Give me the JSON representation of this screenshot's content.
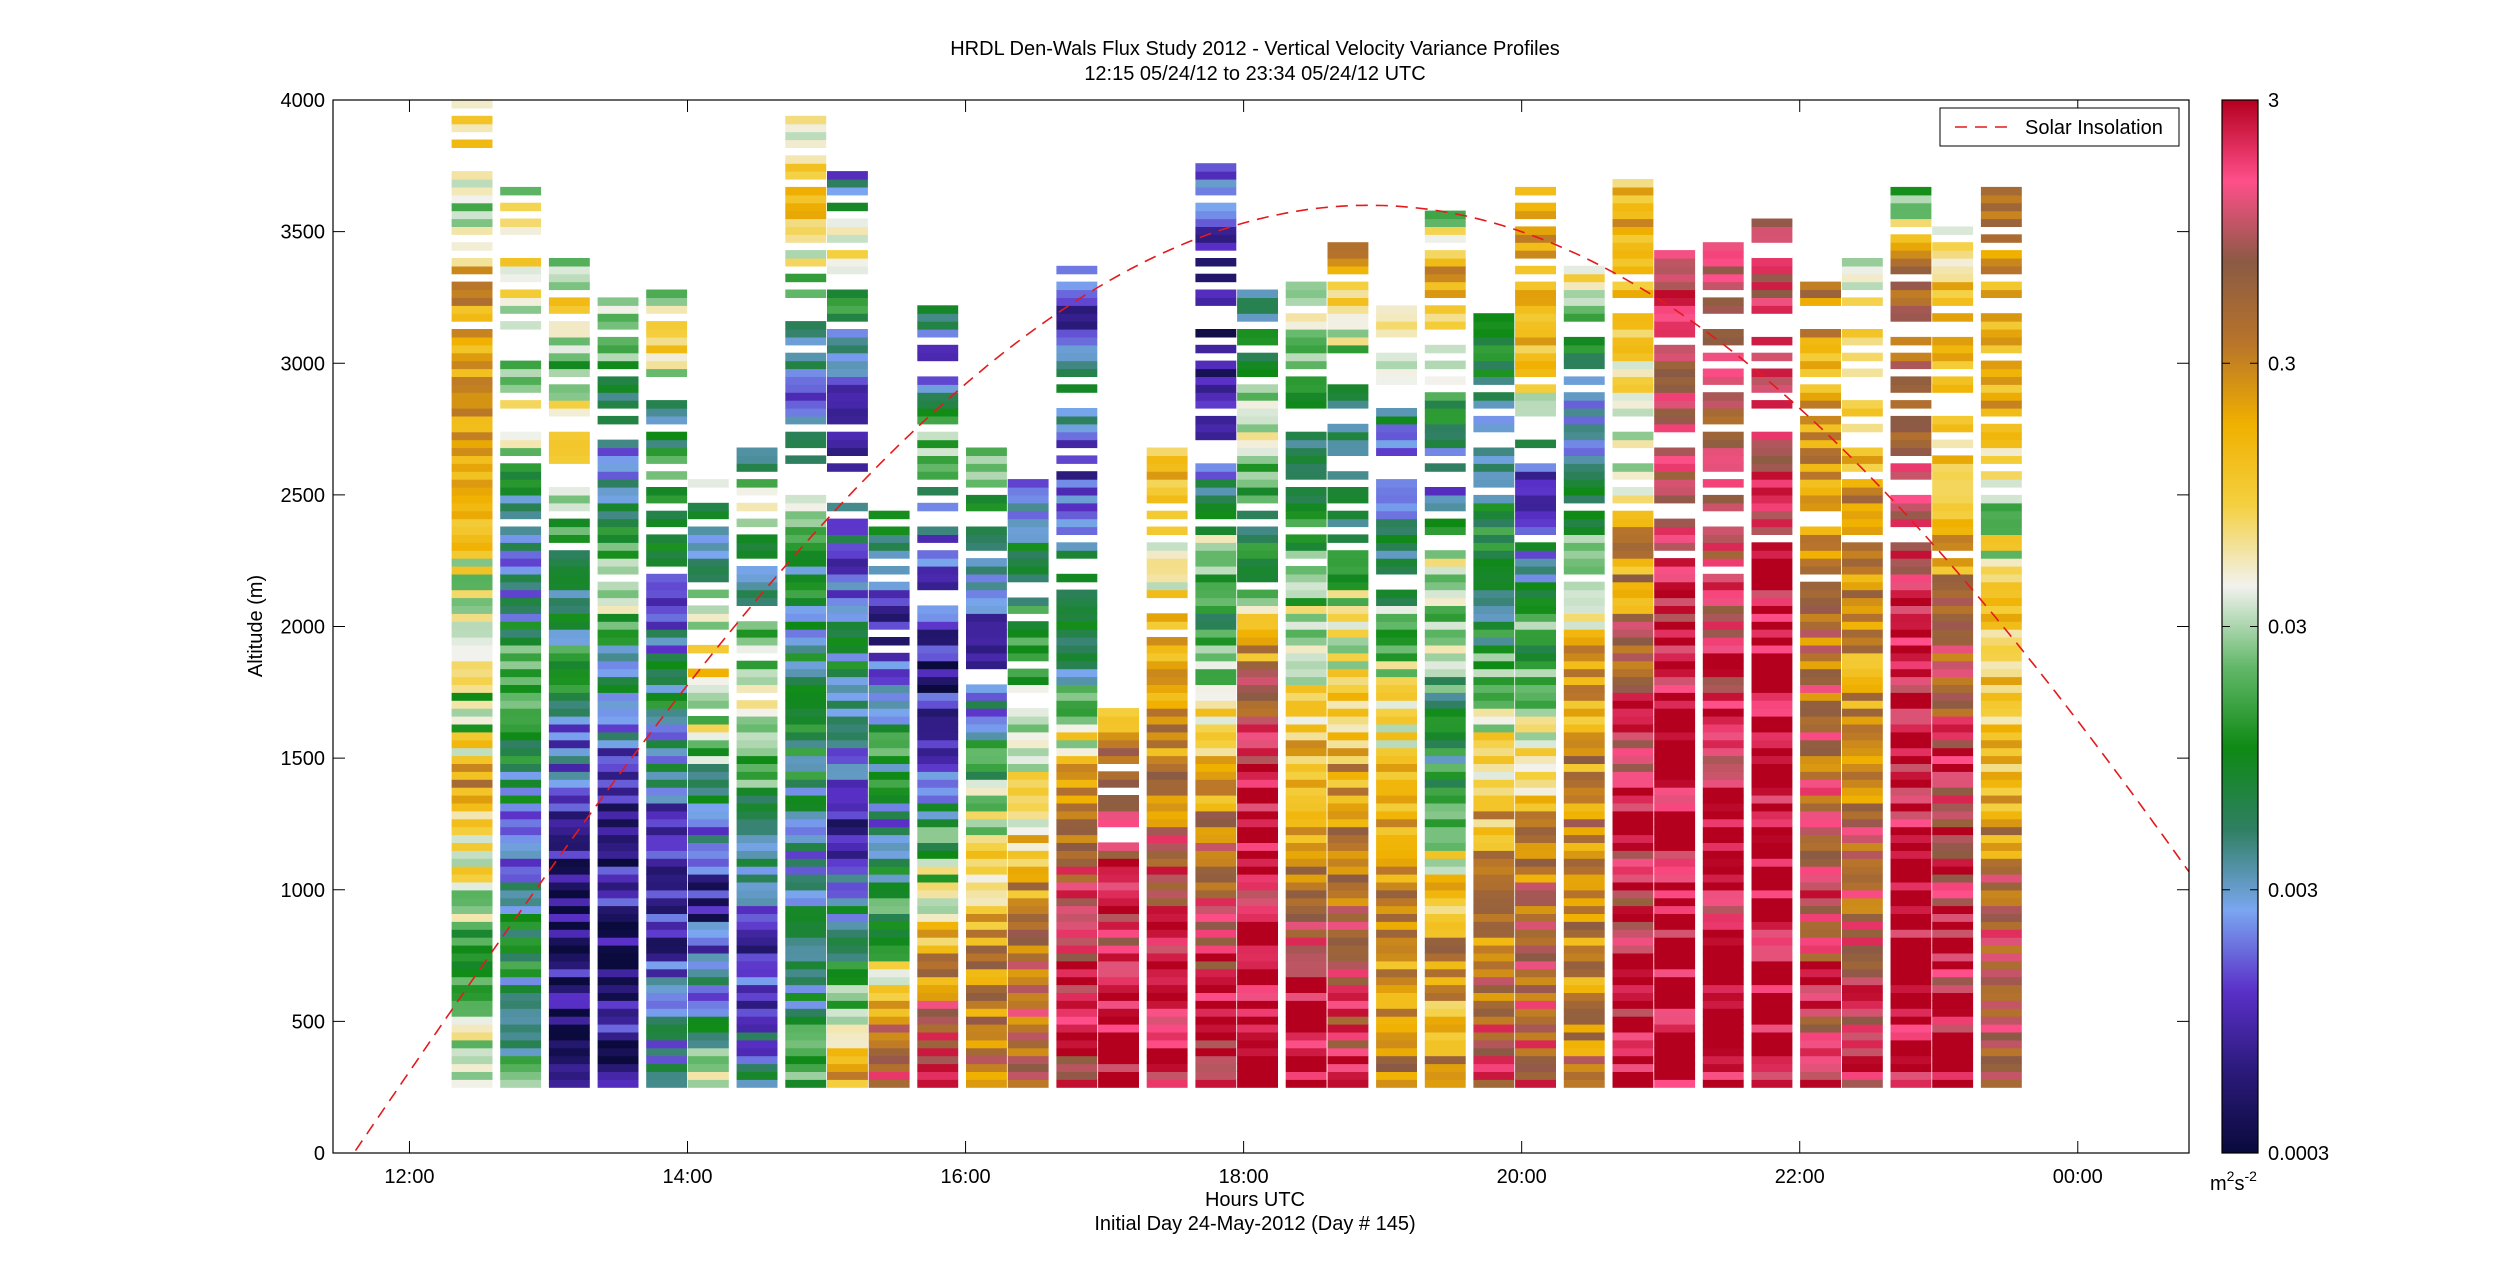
{
  "chart_data": {
    "type": "heatmap",
    "title_line1": "HRDL Den-Wals Flux Study 2012 - Vertical Velocity Variance Profiles",
    "title_line2": "12:15 05/24/12 to 23:34 05/24/12  UTC",
    "xlabel": "Hours UTC",
    "xlabel_sub": "Initial Day 24-May-2012 (Day # 145)",
    "ylabel": "Altitude (m)",
    "xlim": [
      11.45,
      24.8
    ],
    "ylim": [
      0,
      4000
    ],
    "x_ticks": [
      {
        "value": 12,
        "label": "12:00"
      },
      {
        "value": 14,
        "label": "14:00"
      },
      {
        "value": 16,
        "label": "16:00"
      },
      {
        "value": 18,
        "label": "18:00"
      },
      {
        "value": 20,
        "label": "20:00"
      },
      {
        "value": 22,
        "label": "22:00"
      },
      {
        "value": 24,
        "label": "00:00"
      }
    ],
    "y_ticks": [
      0,
      500,
      1000,
      1500,
      2000,
      2500,
      3000,
      3500,
      4000
    ],
    "y_tick_labels": [
      "0",
      "500",
      "1000",
      "1500",
      "2000",
      "2500",
      "3000",
      "3500",
      "4000"
    ],
    "colorbar": {
      "scale": "log",
      "range": [
        0.0003,
        3
      ],
      "tick_values": [
        0.0003,
        0.003,
        0.03,
        0.3,
        3
      ],
      "tick_labels": [
        "0.0003",
        "0.003",
        "0.03",
        "0.3",
        "3"
      ],
      "unit_base": "m",
      "unit_sup1": "2",
      "unit_mid": "s",
      "unit_sup2": "-2",
      "colors": [
        "#0a0a3c",
        "#2a1a7a",
        "#5a30c8",
        "#7aa6f0",
        "#2f7f62",
        "#0e8a14",
        "#63b86a",
        "#f2f2ee",
        "#f4d040",
        "#f0b000",
        "#b8742a",
        "#8a5a44",
        "#ff4f8a",
        "#b4001e"
      ]
    },
    "legend": {
      "position": "top-right",
      "entry": "Solar Insolation",
      "color": "#e41a1c",
      "style": "dashed"
    },
    "solar_curve": {
      "peak_hour": 18.9,
      "peak_altitude": 3600,
      "half_width_hours": 7.3
    },
    "profiles": [
      {
        "time": 12.45,
        "top": 4000,
        "lev": [
          -1.2,
          -1.6,
          -2.0,
          -1.3,
          -1.0,
          -0.6,
          -1.8,
          -1.0,
          -1.4,
          -0.9,
          -0.7,
          -0.5,
          -0.6,
          -0.5,
          -1.6,
          -0.8,
          -1.1
        ]
      },
      {
        "time": 12.8,
        "top": 3680,
        "lev": [
          -1.8,
          -2.5,
          -2.1,
          -2.4,
          -2.8,
          -2.2,
          -2.0,
          -1.8,
          -2.6,
          -2.4,
          -2.0,
          -1.1,
          -1.8,
          -1.2,
          -0.9,
          -1.5
        ]
      },
      {
        "time": 13.15,
        "top": 3440,
        "lev": [
          -3.3,
          -3.4,
          -3.2,
          -3.4,
          -3.1,
          -2.9,
          -2.6,
          -2.0,
          -2.4,
          -1.8,
          -1.4,
          -0.8,
          -1.6,
          -0.9,
          -2.0
        ]
      },
      {
        "time": 13.5,
        "top": 3300,
        "lev": [
          -3.3,
          -3.2,
          -3.4,
          -3.0,
          -3.3,
          -2.8,
          -2.6,
          -2.2,
          -1.4,
          -1.8,
          -2.6,
          -2.0,
          -1.6,
          -1.2
        ]
      },
      {
        "time": 13.85,
        "top": 3300,
        "lev": [
          -2.4,
          -2.6,
          -3.0,
          -3.2,
          -2.8,
          -2.4,
          -2.2,
          -2.8,
          -2.0,
          -1.6,
          -2.2,
          -1.0,
          -1.4
        ]
      },
      {
        "time": 14.15,
        "top": 2560,
        "lev": [
          -1.6,
          -2.2,
          -2.8,
          -3.1,
          -2.6,
          -2.0,
          -1.4,
          -0.8,
          -1.6,
          -2.4,
          -1.4
        ]
      },
      {
        "time": 14.5,
        "top": 2680,
        "lev": [
          -2.4,
          -2.8,
          -3.0,
          -2.6,
          -2.0,
          -1.8,
          -1.3,
          -1.6,
          -2.4,
          -1.0,
          -2.4
        ]
      },
      {
        "time": 14.85,
        "top": 3960,
        "lev": [
          -1.8,
          -2.2,
          -2.4,
          -2.6,
          -2.2,
          -2.0,
          -2.4,
          -2.1,
          -1.6,
          -2.8,
          -2.0,
          -1.2,
          -0.6,
          -1.5
        ]
      },
      {
        "time": 15.15,
        "top": 3750,
        "lev": [
          -0.8,
          -1.6,
          -2.4,
          -3.0,
          -2.6,
          -2.2,
          -2.8,
          -2.4,
          -3.1,
          -2.2,
          -1.0,
          -2.8
        ]
      },
      {
        "time": 15.45,
        "top": 2470,
        "lev": [
          0.1,
          -0.4,
          -1.6,
          -2.2,
          -2.6,
          -2.0,
          -2.4,
          -3.0,
          -2.2,
          -1.8
        ]
      },
      {
        "time": 15.8,
        "top": 3260,
        "lev": [
          0.2,
          -0.2,
          -0.8,
          -1.6,
          -2.4,
          -3.0,
          -3.2,
          -2.8,
          -2.4,
          -1.4,
          -2.8,
          -1.8
        ]
      },
      {
        "time": 16.15,
        "top": 2700,
        "lev": [
          -0.5,
          -0.4,
          -0.6,
          -1.1,
          -1.4,
          -2.0,
          -2.6,
          -3.0,
          -2.2,
          -1.8,
          -1.4
        ]
      },
      {
        "time": 16.45,
        "top": 2600,
        "lev": [
          -0.4,
          -0.3,
          -0.2,
          -0.6,
          -1.0,
          -1.2,
          -1.4,
          -1.8,
          -2.0,
          -2.2,
          -3.0
        ]
      },
      {
        "time": 16.8,
        "top": 3370,
        "lev": [
          0.2,
          0.4,
          0.1,
          0.0,
          -0.6,
          -1.2,
          -2.2,
          -1.8,
          -2.4,
          -3.0,
          -2.0,
          -3.0,
          -2.4
        ]
      },
      {
        "time": 17.1,
        "top": 1700,
        "lev": [
          0.5,
          0.4,
          0.3,
          0.2,
          0.1,
          -1.0
        ]
      },
      {
        "time": 17.45,
        "top": 2820,
        "lev": [
          0.3,
          0.4,
          0.2,
          0.0,
          -0.6,
          -0.4,
          -0.8,
          -1.2,
          -0.7,
          -1.0
        ]
      },
      {
        "time": 17.8,
        "top": 3790,
        "lev": [
          0.4,
          0.3,
          0.1,
          -0.2,
          -0.8,
          -1.4,
          -2.0,
          -1.6,
          -2.6,
          -3.0,
          -3.2,
          -2.8,
          -2.4
        ]
      },
      {
        "time": 18.1,
        "top": 3320,
        "lev": [
          0.45,
          0.5,
          0.45,
          0.4,
          0.2,
          -0.2,
          -1.6,
          -2.0,
          -1.2,
          -1.8,
          -2.6
        ]
      },
      {
        "time": 18.45,
        "top": 3330,
        "lev": [
          0.5,
          0.4,
          -0.1,
          -0.5,
          -0.8,
          -1.4,
          -1.6,
          -1.8,
          -2.2,
          -1.6,
          -1.2
        ]
      },
      {
        "time": 18.75,
        "top": 3470,
        "lev": [
          0.2,
          0.05,
          -0.2,
          -0.4,
          -0.7,
          -1.1,
          -1.4,
          -1.9,
          -2.2,
          -2.0,
          -1.0,
          -0.5
        ]
      },
      {
        "time": 19.1,
        "top": 3250,
        "lev": [
          -0.4,
          -0.6,
          -0.7,
          -0.5,
          -1.0,
          -1.4,
          -1.8,
          -2.2,
          -2.8,
          -1.3,
          -1.0
        ]
      },
      {
        "time": 19.45,
        "top": 3620,
        "lev": [
          -0.5,
          -0.7,
          -0.6,
          -1.2,
          -2.0,
          -2.2,
          -1.6,
          -1.4,
          -2.6,
          -2.0,
          -1.1,
          -0.6,
          -1.8
        ]
      },
      {
        "time": 19.8,
        "top": 3240,
        "lev": [
          0.1,
          -0.2,
          -0.5,
          -0.7,
          -1.0,
          -1.6,
          -2.2,
          -1.8,
          -2.4,
          -2.0,
          -1.4
        ]
      },
      {
        "time": 20.1,
        "top": 3690,
        "lev": [
          0.0,
          -0.2,
          -0.3,
          -0.5,
          -1.0,
          -1.6,
          -1.8,
          -2.4,
          -2.8,
          -1.2,
          -0.7,
          -0.6,
          -0.6
        ]
      },
      {
        "time": 20.45,
        "top": 3410,
        "lev": [
          -0.4,
          -0.5,
          -0.6,
          -0.4,
          -0.6,
          -0.8,
          -1.2,
          -2.0,
          -2.6,
          -1.6,
          -1.0
        ]
      },
      {
        "time": 20.8,
        "top": 3770,
        "lev": [
          0.5,
          0.4,
          0.2,
          0.3,
          0.1,
          -0.4,
          -0.8,
          -1.4,
          -0.9,
          -0.6,
          -0.8
        ]
      },
      {
        "time": 21.1,
        "top": 3440,
        "lev": [
          0.5,
          0.55,
          0.45,
          0.5,
          0.4,
          0.3,
          0.2,
          0.1,
          0.2,
          0.3
        ]
      },
      {
        "time": 21.45,
        "top": 3470,
        "lev": [
          0.55,
          0.5,
          0.4,
          0.35,
          0.3,
          0.2,
          0.1,
          0.0,
          0.2,
          0.1
        ]
      },
      {
        "time": 21.8,
        "top": 3560,
        "lev": [
          0.45,
          0.55,
          0.5,
          0.55,
          0.45,
          0.35,
          0.25,
          0.3,
          0.1
        ]
      },
      {
        "time": 22.15,
        "top": 3370,
        "lev": [
          0.2,
          0.1,
          0.0,
          -0.2,
          -0.3,
          -0.4,
          -0.5,
          -0.6,
          -0.3
        ]
      },
      {
        "time": 22.45,
        "top": 3410,
        "lev": [
          0.1,
          0.0,
          -0.2,
          -0.3,
          -0.5,
          -0.6,
          -0.3,
          -0.8,
          -1.0,
          -1.6
        ]
      },
      {
        "time": 22.8,
        "top": 3680,
        "lev": [
          0.5,
          0.55,
          0.5,
          0.45,
          0.4,
          0.3,
          0.1,
          -0.1,
          -0.2,
          -1.8
        ]
      },
      {
        "time": 23.1,
        "top": 3530,
        "lev": [
          0.4,
          0.35,
          0.3,
          0.2,
          0.1,
          -0.3,
          -0.6,
          -0.8,
          -1.0,
          -0.6,
          -1.2
        ]
      },
      {
        "time": 23.45,
        "top": 3710,
        "lev": [
          -0.2,
          -0.3,
          -0.1,
          -0.6,
          -0.8,
          -0.9,
          -1.2,
          -1.4,
          -0.6,
          -0.8,
          -0.4,
          -0.2
        ]
      }
    ]
  }
}
